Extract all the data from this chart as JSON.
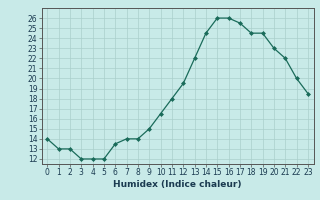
{
  "x": [
    0,
    1,
    2,
    3,
    4,
    5,
    6,
    7,
    8,
    9,
    10,
    11,
    12,
    13,
    14,
    15,
    16,
    17,
    18,
    19,
    20,
    21,
    22,
    23
  ],
  "y": [
    14,
    13,
    13,
    12,
    12,
    12,
    13.5,
    14,
    14,
    15,
    16.5,
    18,
    19.5,
    22,
    24.5,
    26,
    26,
    25.5,
    24.5,
    24.5,
    23,
    22,
    20,
    18.5
  ],
  "xlabel": "Humidex (Indice chaleur)",
  "xlim": [
    -0.5,
    23.5
  ],
  "ylim": [
    11.5,
    27
  ],
  "yticks": [
    12,
    13,
    14,
    15,
    16,
    17,
    18,
    19,
    20,
    21,
    22,
    23,
    24,
    25,
    26
  ],
  "xticks": [
    0,
    1,
    2,
    3,
    4,
    5,
    6,
    7,
    8,
    9,
    10,
    11,
    12,
    13,
    14,
    15,
    16,
    17,
    18,
    19,
    20,
    21,
    22,
    23
  ],
  "line_color": "#1a6b5a",
  "marker_color": "#1a6b5a",
  "bg_color": "#c8eae8",
  "grid_color": "#aacfcc",
  "label_fontsize": 6.5,
  "tick_fontsize": 5.5
}
